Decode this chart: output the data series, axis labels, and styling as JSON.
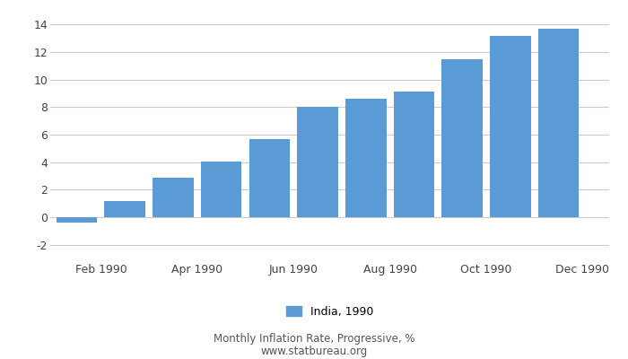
{
  "bar_values": [
    -0.4,
    1.2,
    2.85,
    4.05,
    5.7,
    8.02,
    8.6,
    9.1,
    11.45,
    13.2,
    13.7
  ],
  "bar_color": "#5b9bd5",
  "x_positions": [
    0,
    1,
    2,
    3,
    4,
    5,
    6,
    7,
    8,
    9,
    10
  ],
  "xtick_positions": [
    0.5,
    2.5,
    4.5,
    6.5,
    8.5,
    10.5
  ],
  "xtick_labels": [
    "Feb 1990",
    "Apr 1990",
    "Jun 1990",
    "Aug 1990",
    "Oct 1990",
    "Dec 1990"
  ],
  "xlim": [
    -0.55,
    11.05
  ],
  "ylim": [
    -3,
    15
  ],
  "yticks": [
    -2,
    0,
    2,
    4,
    6,
    8,
    10,
    12,
    14
  ],
  "bar_width": 0.85,
  "legend_label": "India, 1990",
  "footer_line1": "Monthly Inflation Rate, Progressive, %",
  "footer_line2": "www.statbureau.org",
  "background_color": "#ffffff",
  "grid_color": "#cccccc",
  "tick_fontsize": 9,
  "legend_fontsize": 9,
  "footer_fontsize": 8.5
}
